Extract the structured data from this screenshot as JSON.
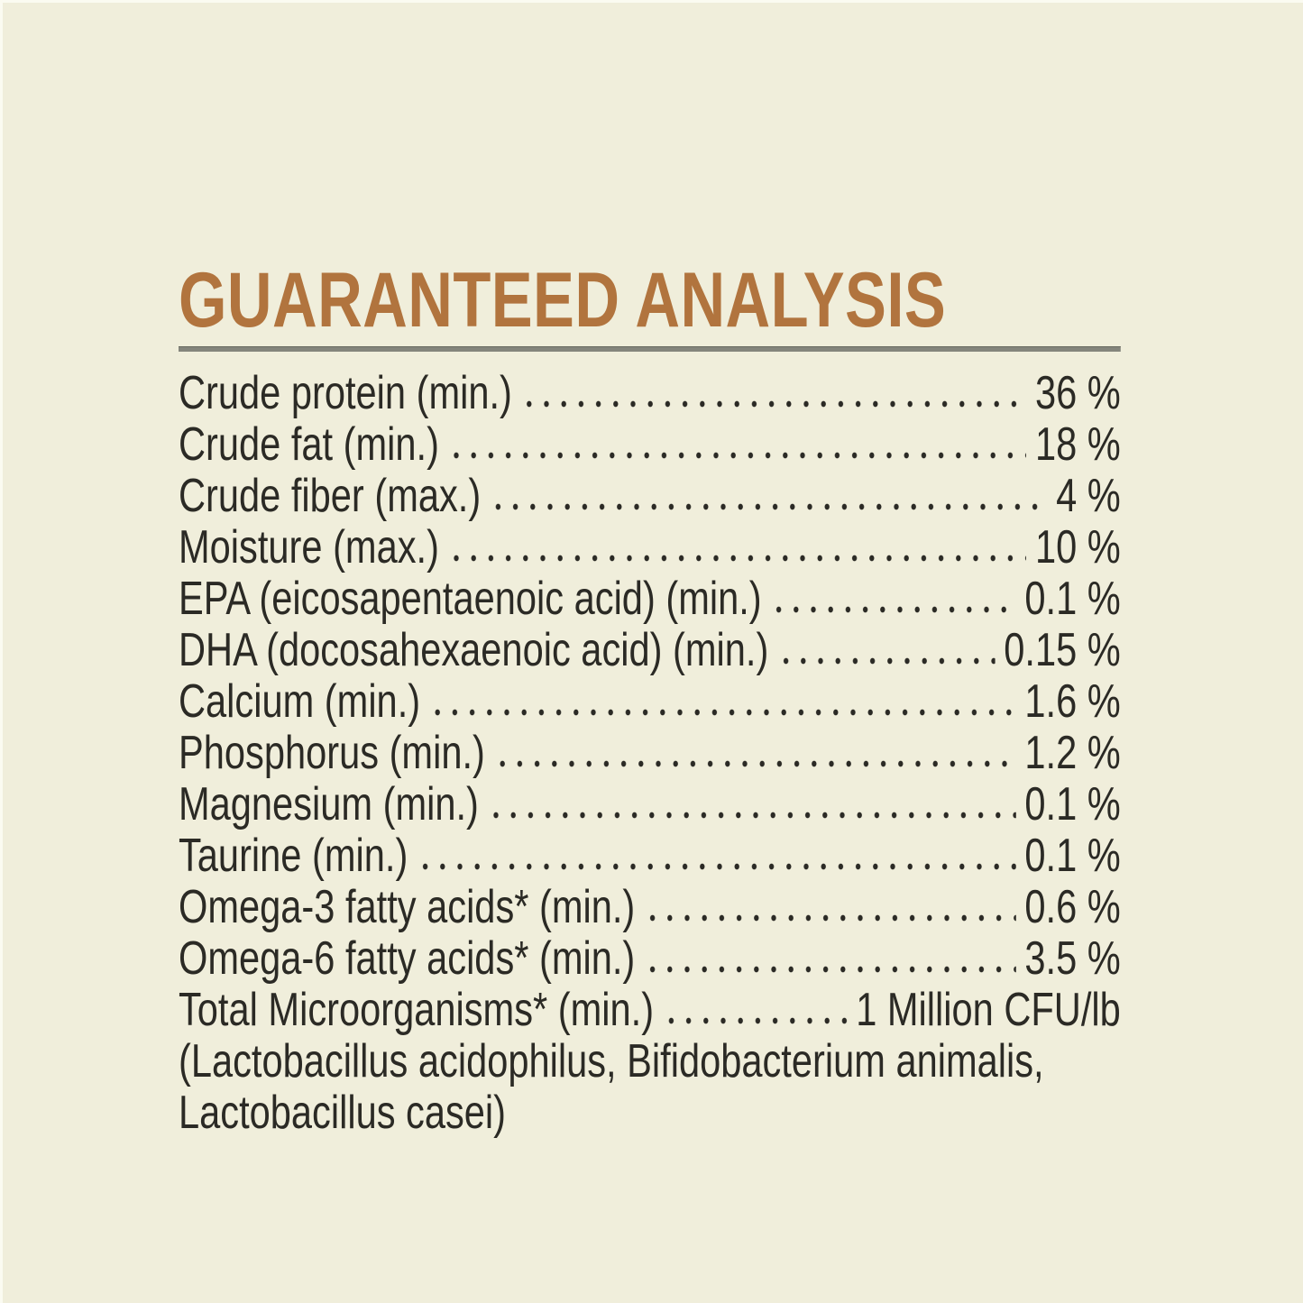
{
  "page": {
    "background_color": "#f0eedb",
    "accent_color": "#b1743e",
    "rule_color": "#84857c",
    "text_color": "#2b2a25"
  },
  "header": {
    "title": "GUARANTEED ANALYSIS"
  },
  "analysis": {
    "rows": [
      {
        "label": "Crude protein (min.)",
        "value": "36 %"
      },
      {
        "label": "Crude fat (min.)",
        "value": "18 %"
      },
      {
        "label": "Crude fiber (max.)",
        "value": "4 %"
      },
      {
        "label": "Moisture (max.)",
        "value": "10 %"
      },
      {
        "label": "EPA (eicosapentaenoic acid) (min.)",
        "value": "0.1 %"
      },
      {
        "label": "DHA (docosahexaenoic acid) (min.)",
        "value": "0.15 %"
      },
      {
        "label": "Calcium (min.)",
        "value": "1.6 %"
      },
      {
        "label": "Phosphorus (min.)",
        "value": "1.2 %"
      },
      {
        "label": "Magnesium (min.)",
        "value": "0.1 %"
      },
      {
        "label": "Taurine (min.)",
        "value": "0.1 %"
      },
      {
        "label": "Omega-3 fatty acids* (min.)",
        "value": "0.6 %"
      },
      {
        "label": "Omega-6 fatty acids* (min.)",
        "value": "3.5 %"
      },
      {
        "label": "Total Microorganisms* (min.)",
        "value": "1 Million CFU/lb"
      }
    ],
    "footnote_lines": [
      "(Lactobacillus acidophilus, Bifidobacterium animalis,",
      "Lactobacillus casei)"
    ]
  }
}
